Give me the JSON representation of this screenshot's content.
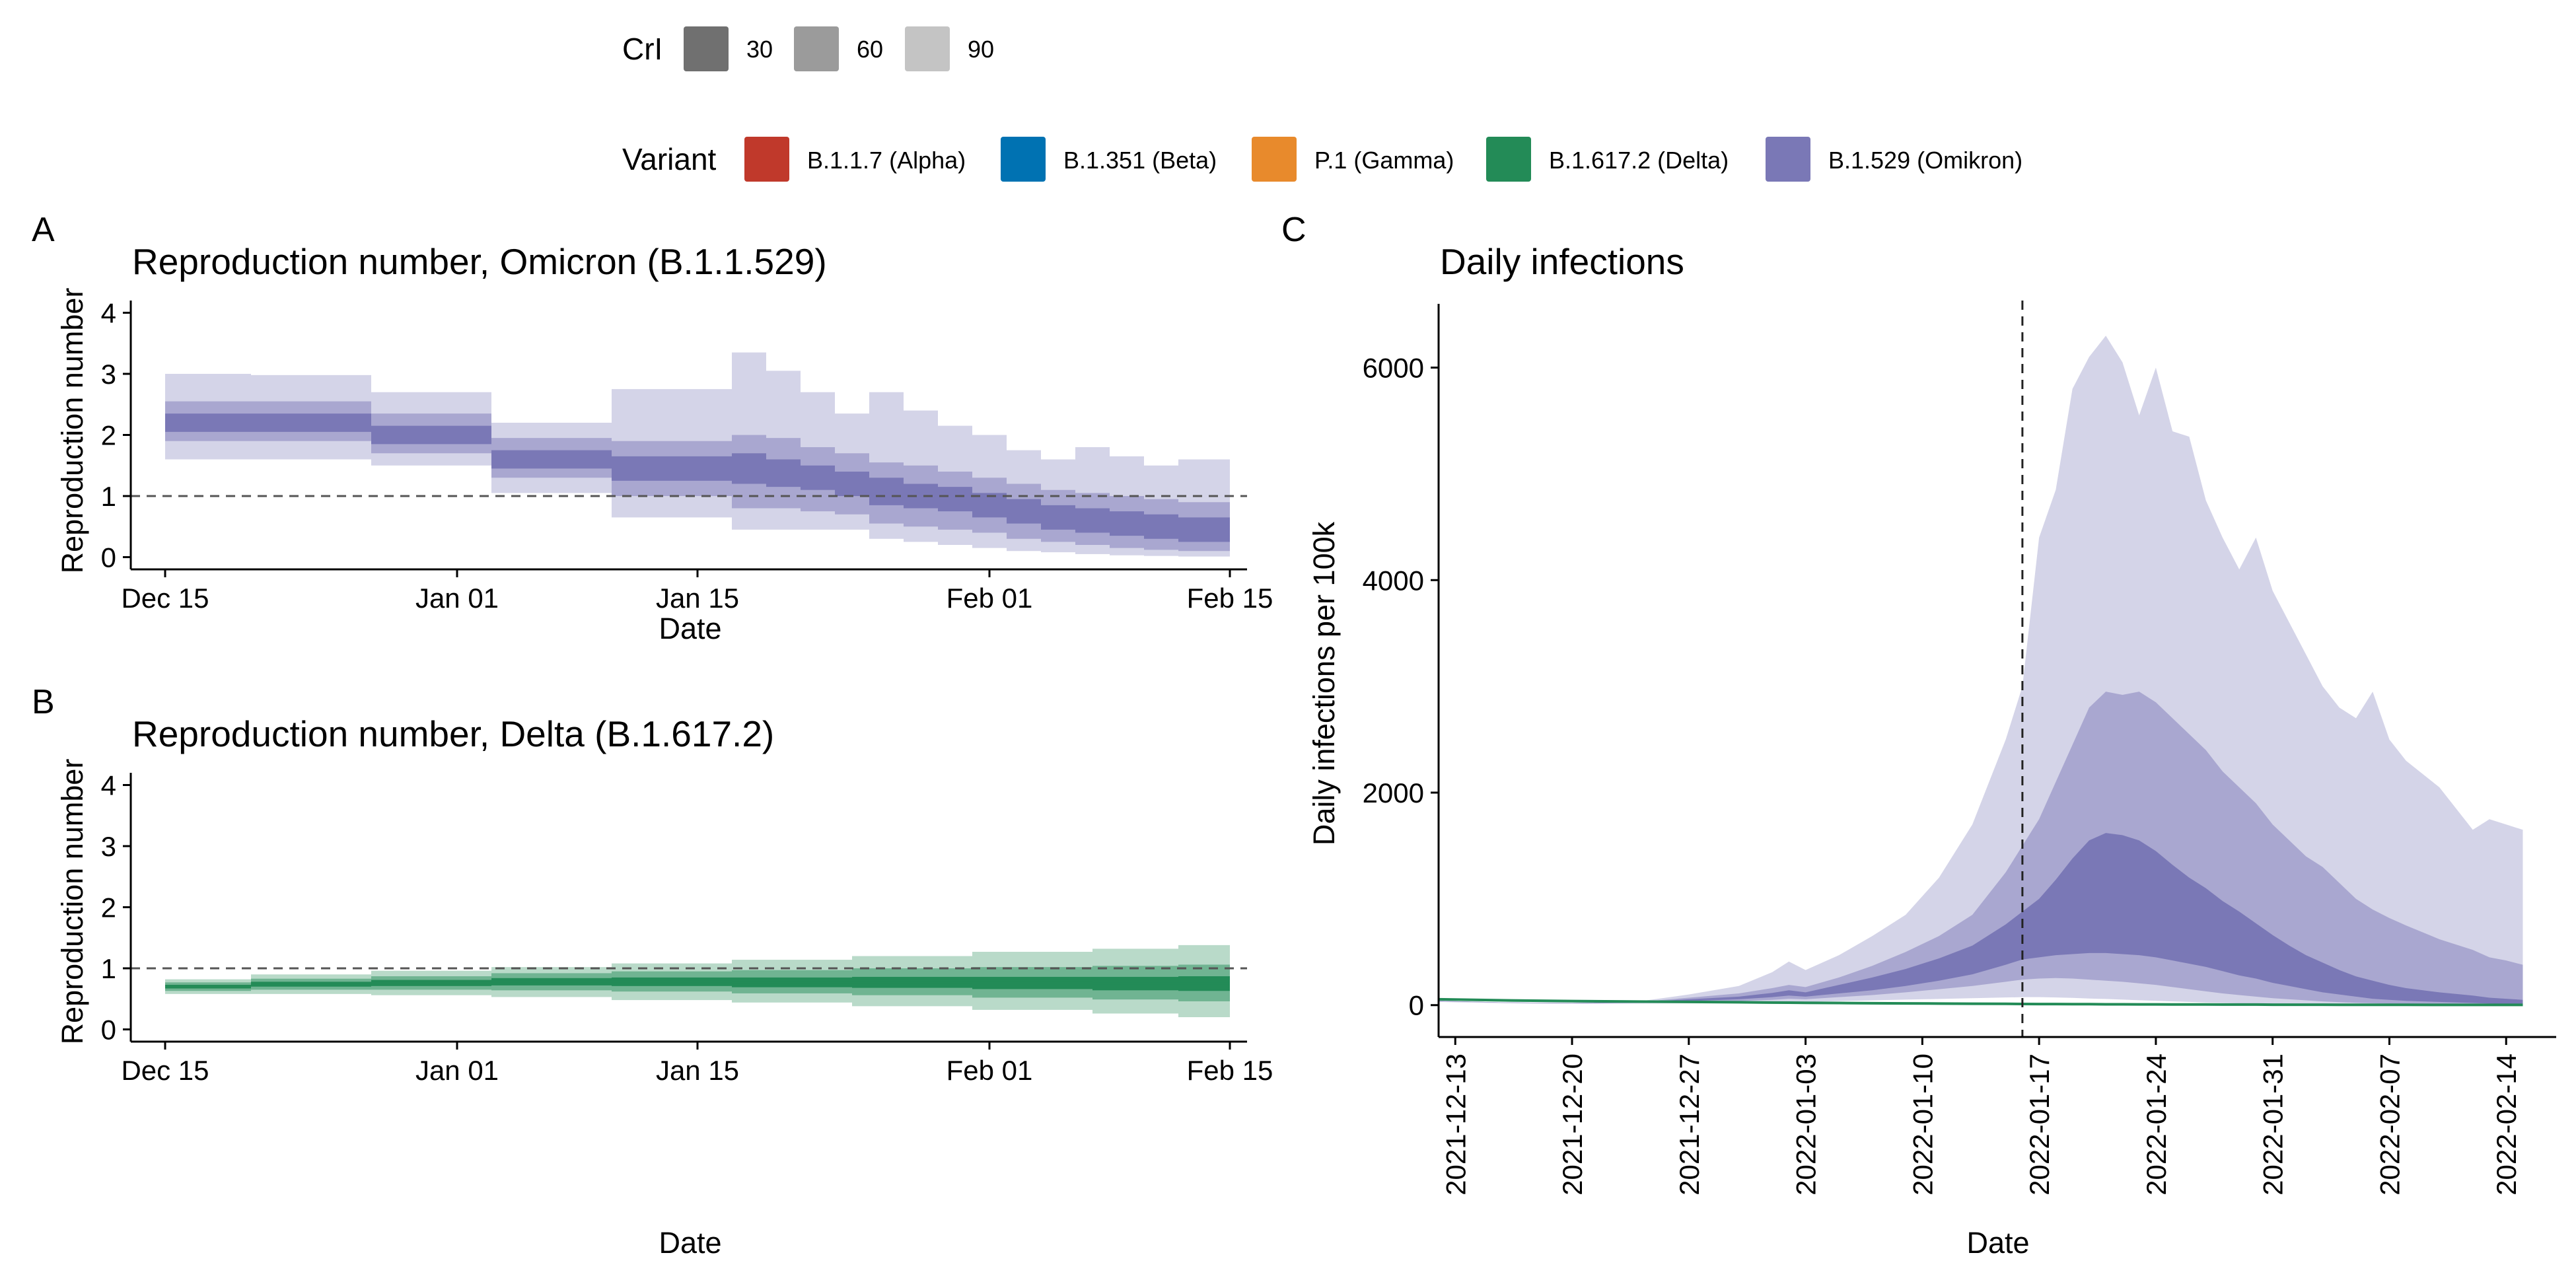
{
  "legend": {
    "cri": {
      "title": "CrI",
      "items": [
        {
          "label": "30",
          "color": "#707070"
        },
        {
          "label": "60",
          "color": "#9b9b9b"
        },
        {
          "label": "90",
          "color": "#c4c4c4"
        }
      ]
    },
    "variant": {
      "title": "Variant",
      "items": [
        {
          "label": "B.1.1.7 (Alpha)",
          "color": "#c0392b"
        },
        {
          "label": "B.1.351 (Beta)",
          "color": "#0072b2"
        },
        {
          "label": "P.1 (Gamma)",
          "color": "#e88a2c"
        },
        {
          "label": "B.1.617.2 (Delta)",
          "color": "#238b57"
        },
        {
          "label": "B.1.529 (Omikron)",
          "color": "#7a78b6"
        }
      ]
    }
  },
  "panels": {
    "a": {
      "letter": "A",
      "title": "Reproduction number, Omicron (B.1.1.529)",
      "ylabel": "Reproduction number",
      "xlabel": "Date"
    },
    "b": {
      "letter": "B",
      "title": "Reproduction number, Delta (B.1.617.2)",
      "ylabel": "Reproduction number",
      "xlabel": "Date"
    },
    "c": {
      "letter": "C",
      "title": "Daily infections",
      "ylabel": "Daily infections per 100k",
      "xlabel": "Date"
    }
  },
  "chart_data": [
    {
      "id": "A",
      "type": "area",
      "title": "Reproduction number, Omicron (B.1.1.529)",
      "xlabel": "Date",
      "ylabel": "Reproduction number",
      "xlim": [
        "2021-12-13",
        "2022-02-16"
      ],
      "ylim": [
        -0.2,
        4.2
      ],
      "xticks": [
        {
          "date": "2021-12-15",
          "label": "Dec 15"
        },
        {
          "date": "2022-01-01",
          "label": "Jan 01"
        },
        {
          "date": "2022-01-15",
          "label": "Jan 15"
        },
        {
          "date": "2022-02-01",
          "label": "Feb 01"
        },
        {
          "date": "2022-02-15",
          "label": "Feb 15"
        }
      ],
      "yticks": [
        0,
        1,
        2,
        3,
        4
      ],
      "reference_line": 1,
      "color": "#7a78b6",
      "series": [
        {
          "start": "2021-12-15",
          "end": "2021-12-20",
          "median": 2.2,
          "ci30": [
            2.05,
            2.35
          ],
          "ci60": [
            1.9,
            2.55
          ],
          "ci90": [
            1.6,
            3.0
          ]
        },
        {
          "start": "2021-12-20",
          "end": "2021-12-27",
          "median": 2.2,
          "ci30": [
            2.05,
            2.35
          ],
          "ci60": [
            1.9,
            2.55
          ],
          "ci90": [
            1.6,
            2.98
          ]
        },
        {
          "start": "2021-12-27",
          "end": "2022-01-03",
          "median": 2.0,
          "ci30": [
            1.85,
            2.15
          ],
          "ci60": [
            1.7,
            2.35
          ],
          "ci90": [
            1.5,
            2.7
          ]
        },
        {
          "start": "2022-01-03",
          "end": "2022-01-10",
          "median": 1.6,
          "ci30": [
            1.45,
            1.75
          ],
          "ci60": [
            1.3,
            1.95
          ],
          "ci90": [
            1.05,
            2.2
          ]
        },
        {
          "start": "2022-01-10",
          "end": "2022-01-17",
          "median": 1.45,
          "ci30": [
            1.25,
            1.65
          ],
          "ci60": [
            1.0,
            1.9
          ],
          "ci90": [
            0.65,
            2.75
          ]
        },
        {
          "start": "2022-01-17",
          "end": "2022-01-19",
          "median": 1.45,
          "ci30": [
            1.2,
            1.7
          ],
          "ci60": [
            0.8,
            2.0
          ],
          "ci90": [
            0.45,
            3.35
          ]
        },
        {
          "start": "2022-01-19",
          "end": "2022-01-21",
          "median": 1.4,
          "ci30": [
            1.15,
            1.6
          ],
          "ci60": [
            0.8,
            1.95
          ],
          "ci90": [
            0.45,
            3.05
          ]
        },
        {
          "start": "2022-01-21",
          "end": "2022-01-23",
          "median": 1.3,
          "ci30": [
            1.1,
            1.5
          ],
          "ci60": [
            0.75,
            1.8
          ],
          "ci90": [
            0.45,
            2.7
          ]
        },
        {
          "start": "2022-01-23",
          "end": "2022-01-25",
          "median": 1.2,
          "ci30": [
            1.0,
            1.4
          ],
          "ci60": [
            0.7,
            1.7
          ],
          "ci90": [
            0.45,
            2.35
          ]
        },
        {
          "start": "2022-01-25",
          "end": "2022-01-27",
          "median": 1.1,
          "ci30": [
            0.85,
            1.3
          ],
          "ci60": [
            0.55,
            1.55
          ],
          "ci90": [
            0.3,
            2.7
          ]
        },
        {
          "start": "2022-01-27",
          "end": "2022-01-29",
          "median": 1.0,
          "ci30": [
            0.8,
            1.2
          ],
          "ci60": [
            0.5,
            1.5
          ],
          "ci90": [
            0.25,
            2.4
          ]
        },
        {
          "start": "2022-01-29",
          "end": "2022-01-31",
          "median": 0.95,
          "ci30": [
            0.75,
            1.15
          ],
          "ci60": [
            0.45,
            1.4
          ],
          "ci90": [
            0.2,
            2.15
          ]
        },
        {
          "start": "2022-01-31",
          "end": "2022-02-02",
          "median": 0.85,
          "ci30": [
            0.65,
            1.05
          ],
          "ci60": [
            0.4,
            1.3
          ],
          "ci90": [
            0.15,
            2.0
          ]
        },
        {
          "start": "2022-02-02",
          "end": "2022-02-04",
          "median": 0.75,
          "ci30": [
            0.55,
            0.95
          ],
          "ci60": [
            0.3,
            1.2
          ],
          "ci90": [
            0.1,
            1.75
          ]
        },
        {
          "start": "2022-02-04",
          "end": "2022-02-06",
          "median": 0.65,
          "ci30": [
            0.45,
            0.85
          ],
          "ci60": [
            0.25,
            1.1
          ],
          "ci90": [
            0.08,
            1.6
          ]
        },
        {
          "start": "2022-02-06",
          "end": "2022-02-08",
          "median": 0.6,
          "ci30": [
            0.4,
            0.8
          ],
          "ci60": [
            0.2,
            1.05
          ],
          "ci90": [
            0.05,
            1.8
          ]
        },
        {
          "start": "2022-02-08",
          "end": "2022-02-10",
          "median": 0.55,
          "ci30": [
            0.35,
            0.75
          ],
          "ci60": [
            0.15,
            1.0
          ],
          "ci90": [
            0.03,
            1.65
          ]
        },
        {
          "start": "2022-02-10",
          "end": "2022-02-12",
          "median": 0.5,
          "ci30": [
            0.3,
            0.7
          ],
          "ci60": [
            0.12,
            0.95
          ],
          "ci90": [
            0.02,
            1.5
          ]
        },
        {
          "start": "2022-02-12",
          "end": "2022-02-15",
          "median": 0.45,
          "ci30": [
            0.25,
            0.65
          ],
          "ci60": [
            0.1,
            0.9
          ],
          "ci90": [
            0.01,
            1.6
          ]
        }
      ]
    },
    {
      "id": "B",
      "type": "area",
      "title": "Reproduction number, Delta (B.1.617.2)",
      "xlabel": "Date",
      "ylabel": "Reproduction number",
      "xlim": [
        "2021-12-13",
        "2022-02-16"
      ],
      "ylim": [
        -0.2,
        4.2
      ],
      "xticks": [
        {
          "date": "2021-12-15",
          "label": "Dec 15"
        },
        {
          "date": "2022-01-01",
          "label": "Jan 01"
        },
        {
          "date": "2022-01-15",
          "label": "Jan 15"
        },
        {
          "date": "2022-02-01",
          "label": "Feb 01"
        },
        {
          "date": "2022-02-15",
          "label": "Feb 15"
        }
      ],
      "yticks": [
        0,
        1,
        2,
        3,
        4
      ],
      "reference_line": 1,
      "color": "#238b57",
      "series": [
        {
          "start": "2021-12-15",
          "end": "2021-12-20",
          "median": 0.7,
          "ci30": [
            0.67,
            0.73
          ],
          "ci60": [
            0.63,
            0.77
          ],
          "ci90": [
            0.58,
            0.82
          ]
        },
        {
          "start": "2021-12-20",
          "end": "2021-12-27",
          "median": 0.74,
          "ci30": [
            0.7,
            0.78
          ],
          "ci60": [
            0.65,
            0.83
          ],
          "ci90": [
            0.58,
            0.9
          ]
        },
        {
          "start": "2021-12-27",
          "end": "2022-01-03",
          "median": 0.76,
          "ci30": [
            0.71,
            0.81
          ],
          "ci60": [
            0.65,
            0.87
          ],
          "ci90": [
            0.56,
            0.96
          ]
        },
        {
          "start": "2022-01-03",
          "end": "2022-01-10",
          "median": 0.78,
          "ci30": [
            0.72,
            0.84
          ],
          "ci60": [
            0.64,
            0.92
          ],
          "ci90": [
            0.53,
            1.02
          ]
        },
        {
          "start": "2022-01-10",
          "end": "2022-01-17",
          "median": 0.78,
          "ci30": [
            0.71,
            0.85
          ],
          "ci60": [
            0.62,
            0.95
          ],
          "ci90": [
            0.48,
            1.08
          ]
        },
        {
          "start": "2022-01-17",
          "end": "2022-01-24",
          "median": 0.77,
          "ci30": [
            0.69,
            0.85
          ],
          "ci60": [
            0.59,
            0.97
          ],
          "ci90": [
            0.44,
            1.14
          ]
        },
        {
          "start": "2022-01-24",
          "end": "2022-01-31",
          "median": 0.77,
          "ci30": [
            0.68,
            0.86
          ],
          "ci60": [
            0.56,
            1.0
          ],
          "ci90": [
            0.38,
            1.2
          ]
        },
        {
          "start": "2022-01-31",
          "end": "2022-02-07",
          "median": 0.76,
          "ci30": [
            0.66,
            0.86
          ],
          "ci60": [
            0.52,
            1.02
          ],
          "ci90": [
            0.32,
            1.27
          ]
        },
        {
          "start": "2022-02-07",
          "end": "2022-02-12",
          "median": 0.75,
          "ci30": [
            0.64,
            0.86
          ],
          "ci60": [
            0.49,
            1.04
          ],
          "ci90": [
            0.26,
            1.32
          ]
        },
        {
          "start": "2022-02-12",
          "end": "2022-02-15",
          "median": 0.75,
          "ci30": [
            0.63,
            0.87
          ],
          "ci60": [
            0.46,
            1.06
          ],
          "ci90": [
            0.2,
            1.38
          ]
        }
      ]
    },
    {
      "id": "C",
      "type": "area",
      "title": "Daily infections",
      "xlabel": "Date",
      "ylabel": "Daily infections per 100k",
      "xlim": [
        "2021-12-12",
        "2022-02-17"
      ],
      "ylim": [
        -300,
        6600
      ],
      "xticks": [
        "2021-12-13",
        "2021-12-20",
        "2021-12-27",
        "2022-01-03",
        "2022-01-10",
        "2022-01-17",
        "2022-01-24",
        "2022-01-31",
        "2022-02-07",
        "2022-02-14"
      ],
      "yticks": [
        0,
        2000,
        4000,
        6000
      ],
      "vline": "2022-01-16",
      "dates": [
        "2021-12-12",
        "2021-12-16",
        "2021-12-20",
        "2021-12-24",
        "2021-12-27",
        "2021-12-30",
        "2022-01-01",
        "2022-01-02",
        "2022-01-03",
        "2022-01-05",
        "2022-01-07",
        "2022-01-09",
        "2022-01-11",
        "2022-01-13",
        "2022-01-15",
        "2022-01-16",
        "2022-01-17",
        "2022-01-18",
        "2022-01-19",
        "2022-01-20",
        "2022-01-21",
        "2022-01-22",
        "2022-01-23",
        "2022-01-24",
        "2022-01-25",
        "2022-01-26",
        "2022-01-27",
        "2022-01-28",
        "2022-01-29",
        "2022-01-30",
        "2022-01-31",
        "2022-02-01",
        "2022-02-02",
        "2022-02-03",
        "2022-02-04",
        "2022-02-05",
        "2022-02-06",
        "2022-02-07",
        "2022-02-08",
        "2022-02-10",
        "2022-02-12",
        "2022-02-13",
        "2022-02-14",
        "2022-02-15"
      ],
      "omicron": {
        "name": "B.1.1.529 (Omikron)",
        "color": "#7a78b6",
        "ci90_upper": [
          40,
          25,
          20,
          35,
          100,
          180,
          310,
          410,
          330,
          470,
          650,
          850,
          1200,
          1700,
          2500,
          3000,
          4400,
          4850,
          5800,
          6100,
          6300,
          6050,
          5550,
          6000,
          5400,
          5350,
          4750,
          4400,
          4100,
          4400,
          3900,
          3600,
          3300,
          3000,
          2800,
          2700,
          2950,
          2500,
          2300,
          2050,
          1650,
          1750,
          1700,
          1650
        ],
        "ci60_upper": [
          40,
          25,
          20,
          30,
          70,
          110,
          160,
          190,
          170,
          260,
          370,
          500,
          650,
          850,
          1250,
          1500,
          1750,
          2100,
          2450,
          2800,
          2950,
          2920,
          2950,
          2850,
          2700,
          2550,
          2400,
          2200,
          2050,
          1900,
          1700,
          1550,
          1400,
          1300,
          1150,
          1000,
          900,
          820,
          750,
          620,
          520,
          450,
          420,
          380
        ],
        "ci30_upper": [
          40,
          25,
          20,
          28,
          55,
          80,
          115,
          140,
          120,
          190,
          260,
          340,
          440,
          560,
          760,
          880,
          1000,
          1180,
          1380,
          1550,
          1620,
          1600,
          1550,
          1450,
          1320,
          1200,
          1100,
          980,
          880,
          770,
          660,
          560,
          470,
          400,
          330,
          270,
          230,
          190,
          160,
          120,
          90,
          70,
          60,
          50
        ],
        "ci30_lower": [
          38,
          24,
          18,
          24,
          38,
          55,
          75,
          90,
          80,
          110,
          140,
          180,
          230,
          290,
          380,
          430,
          450,
          470,
          480,
          490,
          490,
          480,
          470,
          450,
          420,
          390,
          360,
          320,
          280,
          250,
          210,
          180,
          150,
          120,
          100,
          80,
          60,
          50,
          40,
          30,
          20,
          15,
          12,
          10
        ],
        "ci60_lower": [
          35,
          22,
          16,
          20,
          28,
          38,
          50,
          60,
          55,
          75,
          95,
          120,
          150,
          180,
          220,
          240,
          250,
          255,
          250,
          240,
          230,
          220,
          205,
          190,
          170,
          150,
          130,
          110,
          95,
          80,
          65,
          55,
          45,
          35,
          28,
          22,
          18,
          14,
          11,
          8,
          6,
          5,
          4,
          3
        ],
        "ci90_lower": [
          30,
          18,
          12,
          15,
          18,
          22,
          28,
          32,
          30,
          38,
          45,
          52,
          58,
          65,
          72,
          75,
          75,
          72,
          68,
          62,
          58,
          52,
          46,
          40,
          35,
          30,
          25,
          21,
          17,
          14,
          11,
          9,
          7,
          5,
          4,
          3,
          2,
          2,
          1,
          1,
          1,
          0,
          0,
          0
        ]
      },
      "delta": {
        "name": "B.1.617.2 (Delta)",
        "color": "#238b57",
        "median": [
          55,
          45,
          38,
          33,
          30,
          27,
          24,
          23,
          22,
          20,
          18,
          16,
          15,
          13,
          12,
          11,
          10,
          10,
          9,
          9,
          8,
          8,
          7,
          7,
          6,
          6,
          6,
          5,
          5,
          5,
          4,
          4,
          4,
          4,
          3,
          3,
          3,
          3,
          3,
          2,
          2,
          2,
          2,
          2
        ]
      }
    }
  ]
}
